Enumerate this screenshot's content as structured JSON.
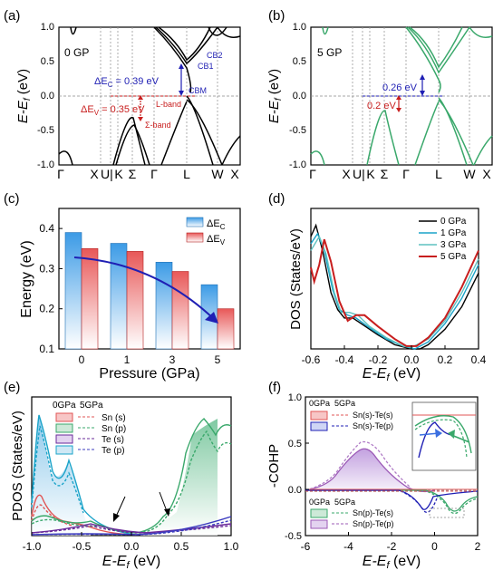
{
  "panels": {
    "a": {
      "label": "(a)",
      "tag": "0 GP",
      "ylabel": "E-E",
      "ylabel_sub": "f",
      "ylabel_unit": " (eV)",
      "yticks": [
        "1.0",
        "0.5",
        "0.0",
        "-0.5",
        "-1.0"
      ],
      "kpoints": [
        "Γ",
        "X",
        "U",
        "|",
        "K",
        "Σ",
        "Γ",
        "L",
        "W",
        "X"
      ],
      "annot": {
        "cb2": "CB2",
        "cb1": "CB1",
        "cbm": "CBM",
        "lband": "L-band",
        "sband": "Σ-band",
        "dc": "ΔE",
        "dc_sub": "C",
        "dc_val": " = 0.39 eV",
        "dv": "ΔE",
        "dv_sub": "V",
        "dv_val": " = 0.35 eV"
      }
    },
    "b": {
      "label": "(b)",
      "tag": "5 GP",
      "ylabel": "E-E",
      "ylabel_sub": "f",
      "ylabel_unit": " (eV)",
      "yticks": [
        "1.0",
        "0.5",
        "0.0",
        "-0.5",
        "-1.0"
      ],
      "kpoints": [
        "Γ",
        "X",
        "U",
        "|",
        "K",
        "Σ",
        "Γ",
        "L",
        "W",
        "X"
      ],
      "annot": {
        "up": "0.26 eV",
        "down": "0.2 eV"
      }
    },
    "c": {
      "label": "(c)"
    },
    "d": {
      "label": "(d)"
    },
    "e": {
      "label": "(e)",
      "head0": "0GPa",
      "head1": "5GPa"
    },
    "f": {
      "label": "(f)",
      "head0": "0GPa",
      "head1": "5GPa",
      "head2": "0GPa",
      "head3": "5GPa"
    }
  },
  "colors": {
    "p0": "#000000",
    "p1": "#1aa3c9",
    "p3": "#5fc2c0",
    "p5": "#c81e1e",
    "green": "#3aa86b",
    "blue": "#1f1fb4",
    "red": "#c81e1e",
    "purple": "#9b59b6"
  },
  "chart_data": [
    {
      "type": "bar",
      "categories": [
        "0",
        "1",
        "3",
        "5"
      ],
      "series": [
        {
          "name": "ΔE_C",
          "values": [
            0.39,
            0.363,
            0.316,
            0.26
          ]
        },
        {
          "name": "ΔE_V",
          "values": [
            0.35,
            0.343,
            0.293,
            0.2
          ]
        }
      ],
      "xlabel": "Pressure (GPa)",
      "ylabel": "Energy (eV)",
      "ylim": [
        0.1,
        0.45
      ],
      "yticks": [
        0.1,
        0.2,
        0.3,
        0.4
      ],
      "legend": [
        "ΔE_C",
        "ΔE_V"
      ],
      "legend_position": "top-right"
    },
    {
      "type": "line",
      "xlabel": "E-E_f (eV)",
      "ylabel": "DOS (States/eV)",
      "xlim": [
        -0.6,
        0.4
      ],
      "xticks": [
        -0.6,
        -0.4,
        -0.2,
        0.0,
        0.2,
        0.4
      ],
      "ylim": [
        0,
        1.0
      ],
      "legend_position": "top-right",
      "series": [
        {
          "name": "0 GPa",
          "color": "#000000",
          "points": [
            [
              -0.6,
              0.8
            ],
            [
              -0.57,
              0.88
            ],
            [
              -0.53,
              0.7
            ],
            [
              -0.48,
              0.4
            ],
            [
              -0.44,
              0.28
            ],
            [
              -0.4,
              0.22
            ],
            [
              -0.35,
              0.22
            ],
            [
              -0.3,
              0.18
            ],
            [
              -0.2,
              0.1
            ],
            [
              -0.1,
              0.03
            ],
            [
              0.0,
              0.0
            ],
            [
              0.05,
              0.0
            ],
            [
              0.1,
              0.03
            ],
            [
              0.2,
              0.14
            ],
            [
              0.3,
              0.3
            ],
            [
              0.4,
              0.54
            ]
          ]
        },
        {
          "name": "1 GPa",
          "color": "#1aa3c9",
          "points": [
            [
              -0.6,
              0.75
            ],
            [
              -0.56,
              0.82
            ],
            [
              -0.52,
              0.7
            ],
            [
              -0.47,
              0.42
            ],
            [
              -0.43,
              0.28
            ],
            [
              -0.38,
              0.24
            ],
            [
              -0.33,
              0.22
            ],
            [
              -0.25,
              0.15
            ],
            [
              -0.15,
              0.07
            ],
            [
              -0.05,
              0.02
            ],
            [
              0.02,
              0.0
            ],
            [
              0.1,
              0.05
            ],
            [
              0.2,
              0.18
            ],
            [
              0.3,
              0.36
            ],
            [
              0.4,
              0.6
            ]
          ]
        },
        {
          "name": "3 GPa",
          "color": "#5fc2c0",
          "points": [
            [
              -0.6,
              0.7
            ],
            [
              -0.55,
              0.8
            ],
            [
              -0.51,
              0.68
            ],
            [
              -0.46,
              0.4
            ],
            [
              -0.42,
              0.26
            ],
            [
              -0.37,
              0.26
            ],
            [
              -0.32,
              0.24
            ],
            [
              -0.25,
              0.16
            ],
            [
              -0.15,
              0.08
            ],
            [
              -0.05,
              0.02
            ],
            [
              0.0,
              0.01
            ],
            [
              0.1,
              0.07
            ],
            [
              0.2,
              0.2
            ],
            [
              0.3,
              0.4
            ],
            [
              0.4,
              0.64
            ]
          ]
        },
        {
          "name": "5 GPa",
          "color": "#c81e1e",
          "points": [
            [
              -0.6,
              0.58
            ],
            [
              -0.58,
              0.48
            ],
            [
              -0.55,
              0.6
            ],
            [
              -0.52,
              0.78
            ],
            [
              -0.48,
              0.62
            ],
            [
              -0.43,
              0.34
            ],
            [
              -0.38,
              0.2
            ],
            [
              -0.33,
              0.24
            ],
            [
              -0.28,
              0.24
            ],
            [
              -0.2,
              0.16
            ],
            [
              -0.1,
              0.07
            ],
            [
              -0.03,
              0.02
            ],
            [
              0.03,
              0.02
            ],
            [
              0.1,
              0.08
            ],
            [
              0.2,
              0.22
            ],
            [
              0.3,
              0.44
            ],
            [
              0.4,
              0.7
            ]
          ]
        }
      ]
    },
    {
      "type": "line",
      "xlabel": "E-E_f (eV)",
      "ylabel": "PDOS (States/eV)",
      "xlim": [
        -1.0,
        1.0
      ],
      "xticks": [
        -1.0,
        -0.5,
        0.0,
        0.5,
        1.0
      ],
      "ylim": [
        0,
        0.8
      ],
      "legend": [
        "Sn (s)",
        "Sn (p)",
        "Te (s)",
        "Te (p)"
      ],
      "legend_position": "top-left"
    },
    {
      "type": "line",
      "xlabel": "E-E_f (eV)",
      "ylabel": "-COHP",
      "xlim": [
        -6,
        2
      ],
      "xticks": [
        -6,
        -4,
        -2,
        0,
        2
      ],
      "ylim": [
        -0.5,
        1.0
      ],
      "yticks": [
        -0.5,
        0.0,
        0.5,
        1.0
      ],
      "legend": [
        "Sn(s)-Te(s)",
        "Sn(s)-Te(p)",
        "Sn(p)-Te(s)",
        "Sn(p)-Te(p)"
      ],
      "legend_position": "top-left"
    }
  ]
}
